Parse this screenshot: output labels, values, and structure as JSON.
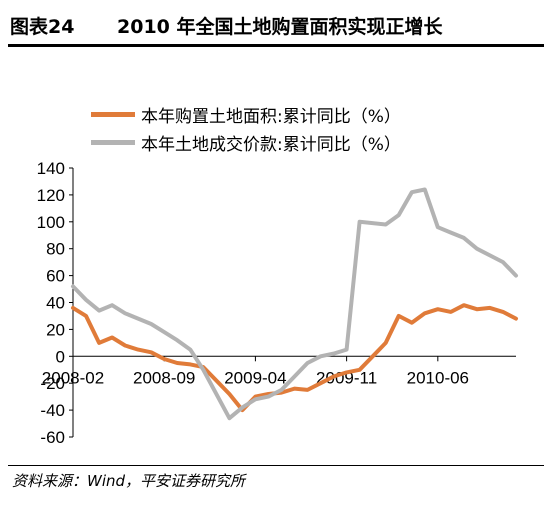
{
  "header": {
    "figure_label": "图表24",
    "title": "2010 年全国土地购置面积实现正增长"
  },
  "source": "资料来源：Wind，平安证券研究所",
  "chart_data": {
    "type": "line",
    "ylim": [
      -60,
      140
    ],
    "yticks": [
      -60,
      -40,
      -20,
      0,
      20,
      40,
      60,
      80,
      100,
      120,
      140
    ],
    "xlim": [
      "2008-02",
      "2010-12"
    ],
    "xticks": [
      "2008-02",
      "2008-09",
      "2009-04",
      "2009-11",
      "2010-06"
    ],
    "grid": false,
    "legend_position": "top-left",
    "series": [
      {
        "name": "本年购置土地面积:累计同比（%）",
        "color": "#E07B39",
        "x": [
          "2008-02",
          "2008-03",
          "2008-04",
          "2008-05",
          "2008-06",
          "2008-07",
          "2008-08",
          "2008-09",
          "2008-10",
          "2008-11",
          "2008-12",
          "2009-02",
          "2009-03",
          "2009-04",
          "2009-05",
          "2009-06",
          "2009-07",
          "2009-08",
          "2009-09",
          "2009-10",
          "2009-11",
          "2009-12",
          "2010-02",
          "2010-03",
          "2010-04",
          "2010-05",
          "2010-06",
          "2010-07",
          "2010-08",
          "2010-09",
          "2010-10",
          "2010-11",
          "2010-12"
        ],
        "values": [
          36,
          30,
          10,
          14,
          8,
          5,
          3,
          -2,
          -5,
          -6,
          -8,
          -28,
          -40,
          -30,
          -28,
          -27,
          -24,
          -25,
          -20,
          -15,
          -12,
          -10,
          10,
          30,
          25,
          32,
          35,
          33,
          38,
          35,
          36,
          33,
          28
        ]
      },
      {
        "name": "本年土地成交价款:累计同比（%）",
        "color": "#B3B3B3",
        "x": [
          "2008-02",
          "2008-03",
          "2008-04",
          "2008-05",
          "2008-06",
          "2008-07",
          "2008-08",
          "2008-09",
          "2008-10",
          "2008-11",
          "2008-12",
          "2009-02",
          "2009-03",
          "2009-04",
          "2009-05",
          "2009-06",
          "2009-07",
          "2009-08",
          "2009-09",
          "2009-10",
          "2009-11",
          "2009-12",
          "2010-02",
          "2010-03",
          "2010-04",
          "2010-05",
          "2010-06",
          "2010-07",
          "2010-08",
          "2010-09",
          "2010-10",
          "2010-11",
          "2010-12"
        ],
        "values": [
          52,
          42,
          34,
          38,
          32,
          28,
          24,
          18,
          12,
          5,
          -10,
          -46,
          -38,
          -32,
          -30,
          -25,
          -15,
          -5,
          0,
          2,
          5,
          100,
          98,
          105,
          122,
          124,
          96,
          92,
          88,
          80,
          75,
          70,
          60
        ]
      }
    ]
  }
}
